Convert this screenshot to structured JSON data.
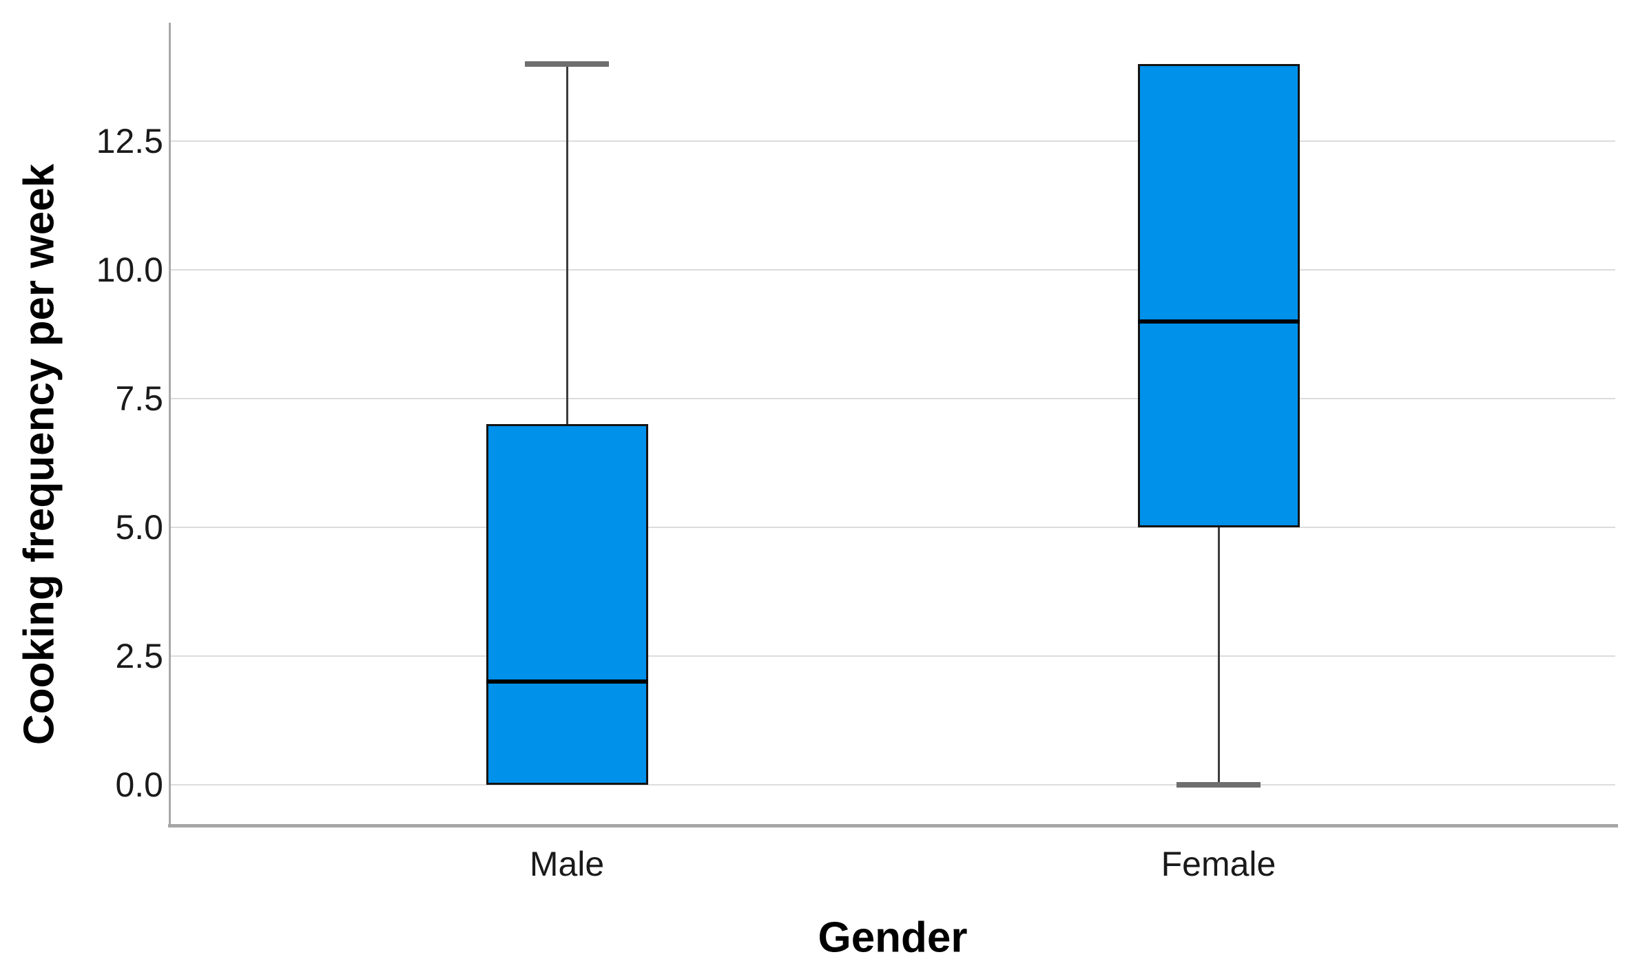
{
  "chart_data": {
    "type": "boxplot",
    "title": "",
    "xlabel": "Gender",
    "ylabel": "Cooking frequency per week",
    "categories": [
      "Male",
      "Female"
    ],
    "y_ticks": [
      "0.0",
      "2.5",
      "5.0",
      "7.5",
      "10.0",
      "12.5"
    ],
    "y_tick_values": [
      0,
      2.5,
      5,
      7.5,
      10,
      12.5
    ],
    "ylim": [
      0,
      15
    ],
    "grid": true,
    "legend": "none",
    "series": [
      {
        "category": "Male",
        "whisker_low": 0,
        "q1": 0,
        "median": 2,
        "q3": 7,
        "whisker_high": 14
      },
      {
        "category": "Female",
        "whisker_low": 0,
        "q1": 5,
        "median": 9,
        "q3": 14,
        "whisker_high": 14
      }
    ],
    "colors": {
      "box_fill": "#0091ea",
      "box_border": "#141414",
      "median": "#000000",
      "whisker": "#3d3d3d",
      "whisker_cap": "#6e6e6e",
      "gridline": "#dcdcdc",
      "axis_line": "#a9a9a9",
      "frame_bottom": "#a6a6a6",
      "text": "#1a1a1a"
    }
  }
}
